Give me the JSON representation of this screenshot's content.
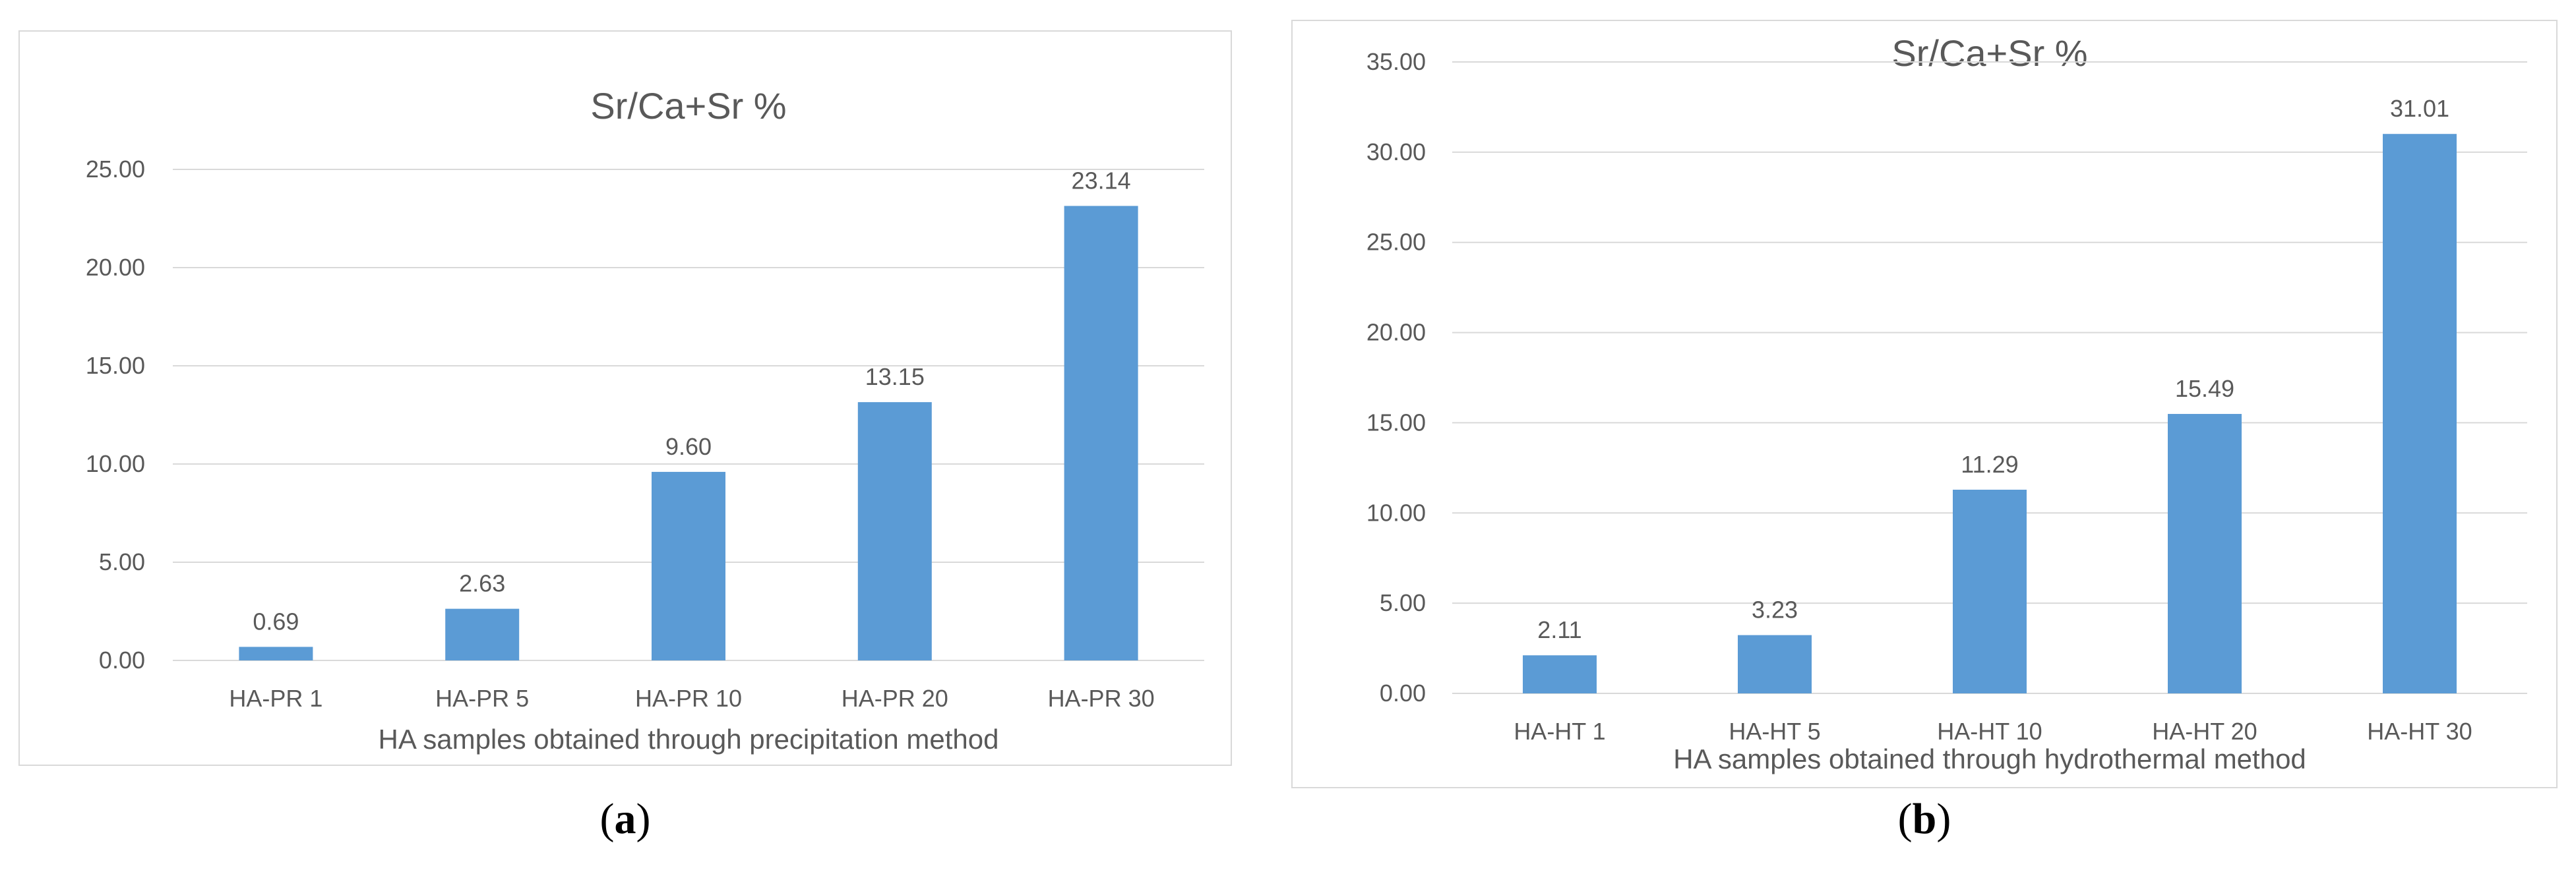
{
  "colors": {
    "bar": "#5b9bd5",
    "grid": "#d9d9d9",
    "text": "#595959",
    "border": "#d9d9d9"
  },
  "captions": [
    "a",
    "b"
  ],
  "chart_data": [
    {
      "type": "bar",
      "title": "Sr/Ca+Sr %",
      "xlabel": "HA samples obtained through precipitation method",
      "ylabel": "",
      "categories": [
        "HA-PR 1",
        "HA-PR 5",
        "HA-PR 10",
        "HA-PR 20",
        "HA-PR 30"
      ],
      "values": [
        0.69,
        2.63,
        9.6,
        13.15,
        23.14
      ],
      "data_labels": [
        "0.69",
        "2.63",
        "9.60",
        "13.15",
        "23.14"
      ],
      "ylim": [
        0,
        25
      ],
      "yticks": [
        "0.00",
        "5.00",
        "10.00",
        "15.00",
        "20.00",
        "25.00"
      ],
      "grid": true,
      "legend": "none"
    },
    {
      "type": "bar",
      "title": "Sr/Ca+Sr %",
      "xlabel": "HA samples obtained through hydrothermal method",
      "ylabel": "",
      "categories": [
        "HA-HT 1",
        "HA-HT 5",
        "HA-HT 10",
        "HA-HT 20",
        "HA-HT 30"
      ],
      "values": [
        2.11,
        3.23,
        11.29,
        15.49,
        31.01
      ],
      "data_labels": [
        "2.11",
        "3.23",
        "11.29",
        "15.49",
        "31.01"
      ],
      "ylim": [
        0,
        35
      ],
      "yticks": [
        "0.00",
        "5.00",
        "10.00",
        "15.00",
        "20.00",
        "25.00",
        "30.00",
        "35.00"
      ],
      "grid": true,
      "legend": "none"
    }
  ]
}
